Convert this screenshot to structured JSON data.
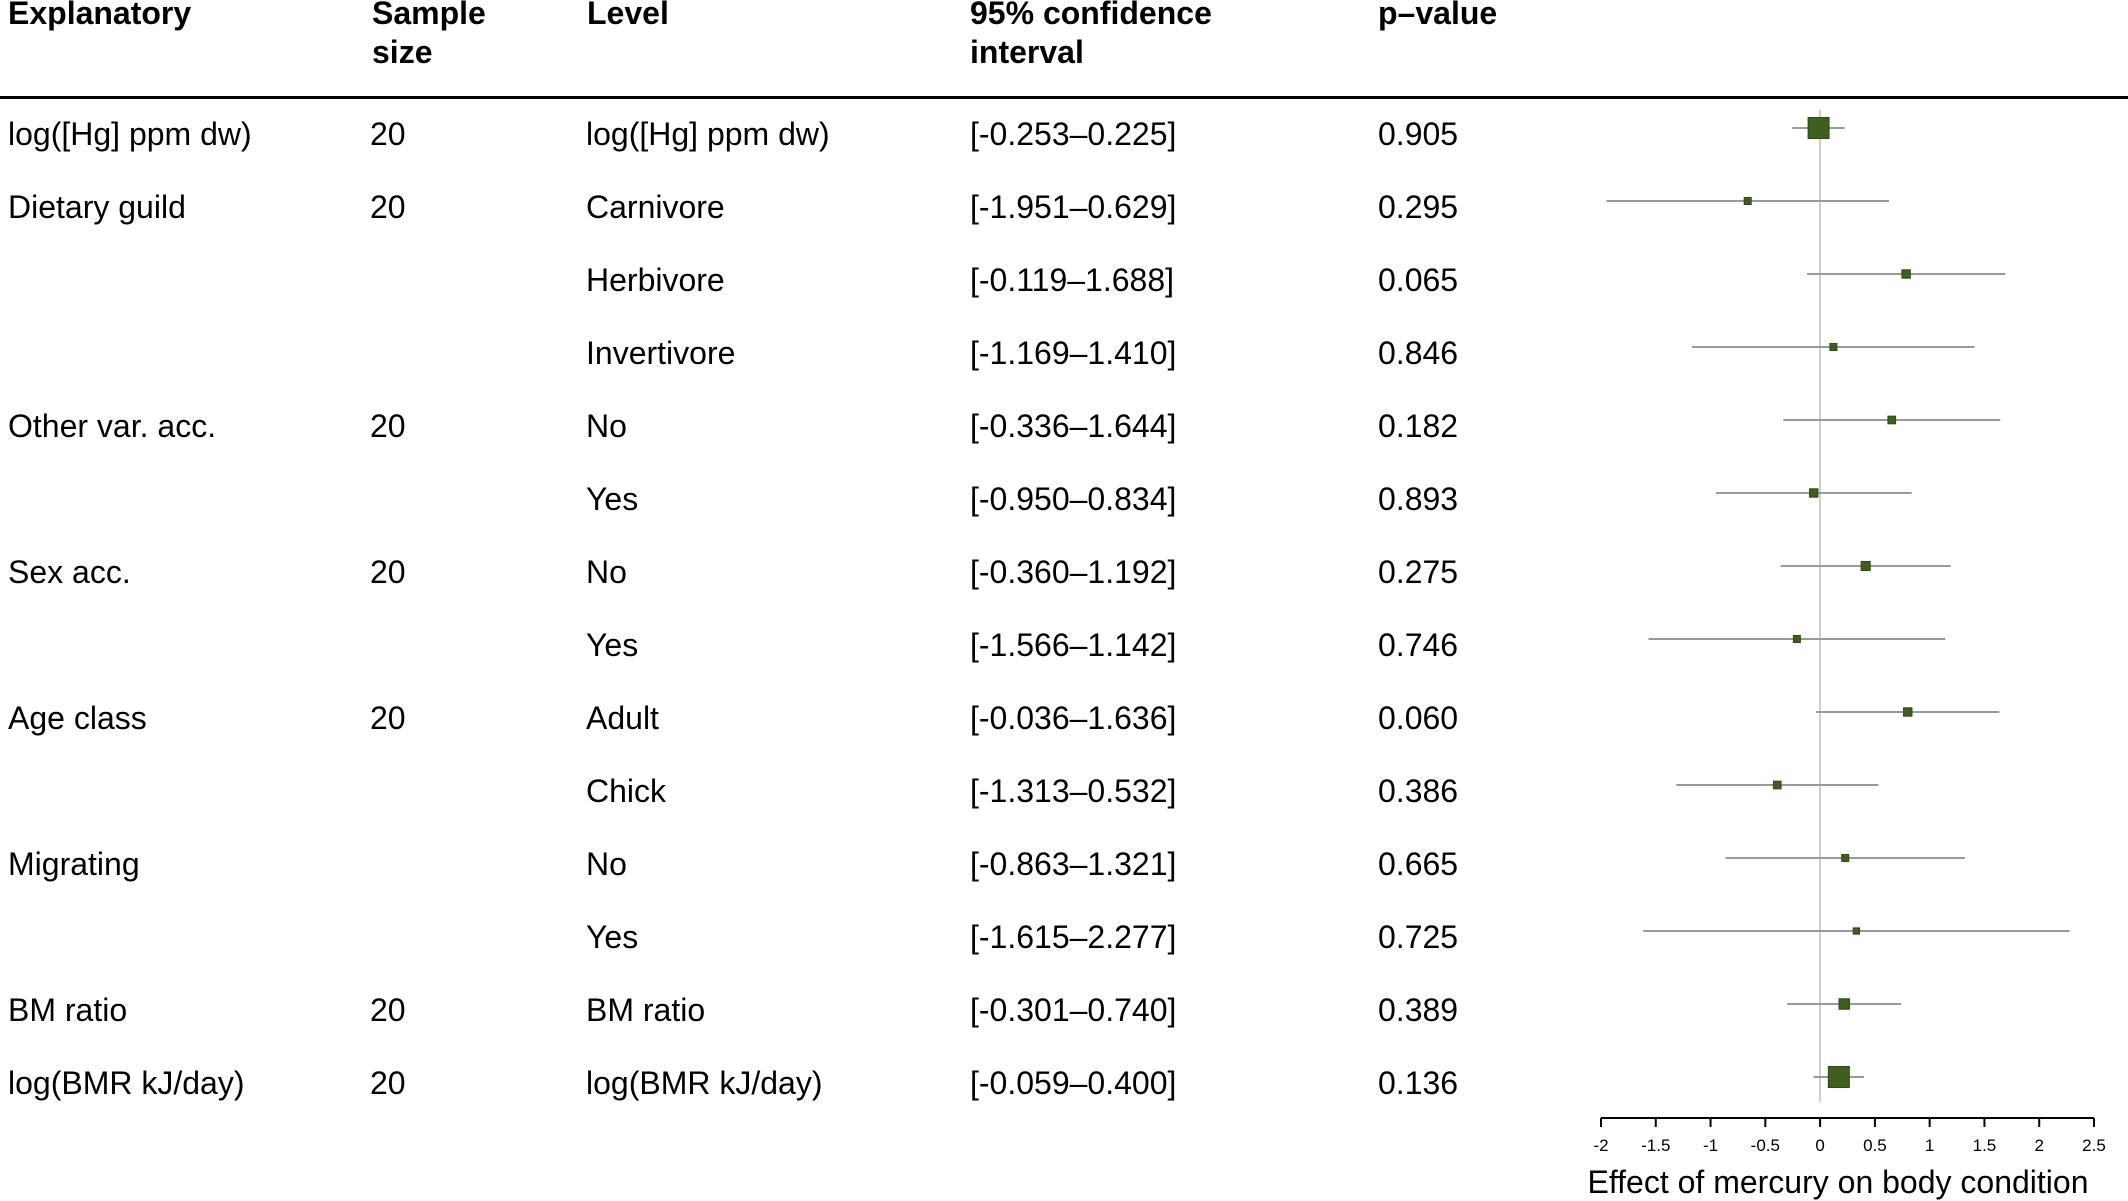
{
  "headers": {
    "explanatory": "Explanatory",
    "sample_size_1": "Sample",
    "sample_size_2": "size",
    "level": "Level",
    "ci_1": "95% confidence",
    "ci_2": "interval",
    "pvalue": "p–value"
  },
  "rows": [
    {
      "explanatory": "log([Hg] ppm dw)",
      "n": "20",
      "level": "log([Hg] ppm dw)",
      "ci": "[-0.253–0.225]",
      "p": "0.905"
    },
    {
      "explanatory": "Dietary guild",
      "n": "20",
      "level": "Carnivore",
      "ci": "[-1.951–0.629]",
      "p": "0.295"
    },
    {
      "explanatory": "",
      "n": "",
      "level": "Herbivore",
      "ci": "[-0.119–1.688]",
      "p": "0.065"
    },
    {
      "explanatory": "",
      "n": "",
      "level": "Invertivore",
      "ci": "[-1.169–1.410]",
      "p": "0.846"
    },
    {
      "explanatory": "Other var. acc.",
      "n": "20",
      "level": "No",
      "ci": "[-0.336–1.644]",
      "p": "0.182"
    },
    {
      "explanatory": "",
      "n": "",
      "level": "Yes",
      "ci": "[-0.950–0.834]",
      "p": "0.893"
    },
    {
      "explanatory": "Sex acc.",
      "n": "20",
      "level": "No",
      "ci": "[-0.360–1.192]",
      "p": "0.275"
    },
    {
      "explanatory": "",
      "n": "",
      "level": "Yes",
      "ci": "[-1.566–1.142]",
      "p": "0.746"
    },
    {
      "explanatory": "Age class",
      "n": "20",
      "level": "Adult",
      "ci": "[-0.036–1.636]",
      "p": "0.060"
    },
    {
      "explanatory": "",
      "n": "",
      "level": "Chick",
      "ci": "[-1.313–0.532]",
      "p": "0.386"
    },
    {
      "explanatory": "Migrating",
      "n": "",
      "level": "No",
      "ci": "[-0.863–1.321]",
      "p": "0.665"
    },
    {
      "explanatory": "",
      "n": "",
      "level": "Yes",
      "ci": "[-1.615–2.277]",
      "p": "0.725"
    },
    {
      "explanatory": "BM ratio",
      "n": "20",
      "level": "BM ratio",
      "ci": "[-0.301–0.740]",
      "p": "0.389"
    },
    {
      "explanatory": "log(BMR kJ/day)",
      "n": "20",
      "level": "log(BMR kJ/day)",
      "ci": "[-0.059–0.400]",
      "p": "0.136"
    }
  ],
  "chart_data": {
    "type": "forest",
    "xlabel": "Effect of mercury on body condition",
    "xlim": [
      -2,
      2.5
    ],
    "xticks": [
      -2,
      -1.5,
      -1,
      -0.5,
      0,
      0.5,
      1,
      1.5,
      2,
      2.5
    ],
    "xtick_labels": [
      "-2",
      "-1.5",
      "-1",
      "-0.5",
      "0",
      "0.5",
      "1",
      "1.5",
      "2",
      "2.5"
    ],
    "reference_line": 0,
    "point_color": "#3f5f1f",
    "whisker_color": "#999999",
    "points": [
      {
        "estimate": -0.014,
        "lower": -0.253,
        "upper": 0.225,
        "weight": 3
      },
      {
        "estimate": -0.661,
        "lower": -1.951,
        "upper": 0.629,
        "weight": 1
      },
      {
        "estimate": 0.785,
        "lower": -0.119,
        "upper": 1.688,
        "weight": 1.2
      },
      {
        "estimate": 0.121,
        "lower": -1.169,
        "upper": 1.41,
        "weight": 1
      },
      {
        "estimate": 0.654,
        "lower": -0.336,
        "upper": 1.644,
        "weight": 1.1
      },
      {
        "estimate": -0.058,
        "lower": -0.95,
        "upper": 0.834,
        "weight": 1.2
      },
      {
        "estimate": 0.416,
        "lower": -0.36,
        "upper": 1.192,
        "weight": 1.3
      },
      {
        "estimate": -0.212,
        "lower": -1.566,
        "upper": 1.142,
        "weight": 1
      },
      {
        "estimate": 0.8,
        "lower": -0.036,
        "upper": 1.636,
        "weight": 1.2
      },
      {
        "estimate": -0.391,
        "lower": -1.313,
        "upper": 0.532,
        "weight": 1.1
      },
      {
        "estimate": 0.229,
        "lower": -0.863,
        "upper": 1.321,
        "weight": 1
      },
      {
        "estimate": 0.331,
        "lower": -1.615,
        "upper": 2.277,
        "weight": 0.9
      },
      {
        "estimate": 0.22,
        "lower": -0.301,
        "upper": 0.74,
        "weight": 1.5
      },
      {
        "estimate": 0.171,
        "lower": -0.059,
        "upper": 0.4,
        "weight": 3
      }
    ]
  }
}
